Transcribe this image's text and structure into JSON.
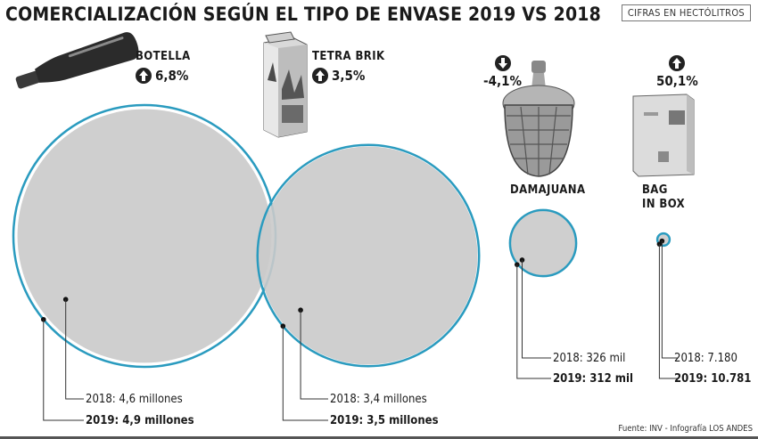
{
  "title": "COMERCIALIZACIÓN SEGÚN EL TIPO DE ENVASE 2019 VS 2018",
  "units_note": "CIFRAS EN HECTÓLITROS",
  "source": "Fuente: INV - Infografía LOS ANDES",
  "colors": {
    "circle_fill": "#cacaca",
    "ring_2019": "#2a9bbf",
    "dot": "#111111",
    "leader": "#333333"
  },
  "chart_data": {
    "type": "bubble",
    "title": "COMERCIALIZACIÓN SEGÚN EL TIPO DE ENVASE 2019 VS 2018",
    "unit": "hectólitros",
    "series": [
      {
        "name": "BOTELLA",
        "label_lines": [
          "BOTELLA"
        ],
        "change": "6,8%",
        "direction": "up",
        "icon": "wine-bottle-icon",
        "v2018": 4600000,
        "v2019": 4900000,
        "label_2018": "2018: 4,6 millones",
        "label_2019": "2019: 4,9 millones"
      },
      {
        "name": "TETRA BRIK",
        "label_lines": [
          "TETRA BRIK"
        ],
        "change": "3,5%",
        "direction": "up",
        "icon": "tetra-brik-icon",
        "v2018": 3400000,
        "v2019": 3500000,
        "label_2018": "2018: 3,4 millones",
        "label_2019": "2019: 3,5 millones"
      },
      {
        "name": "DAMAJUANA",
        "label_lines": [
          "DAMAJUANA"
        ],
        "change": "-4,1%",
        "direction": "down",
        "icon": "demijohn-icon",
        "v2018": 326000,
        "v2019": 312000,
        "label_2018": "2018: 326 mil",
        "label_2019": "2019: 312 mil"
      },
      {
        "name": "BAG IN BOX",
        "label_lines": [
          "BAG",
          "IN BOX"
        ],
        "change": "50,1%",
        "direction": "up",
        "icon": "bag-in-box-icon",
        "v2018": 7180,
        "v2019": 10781,
        "label_2018": "2018: 7.180",
        "label_2019": "2019: 10.781"
      }
    ]
  }
}
